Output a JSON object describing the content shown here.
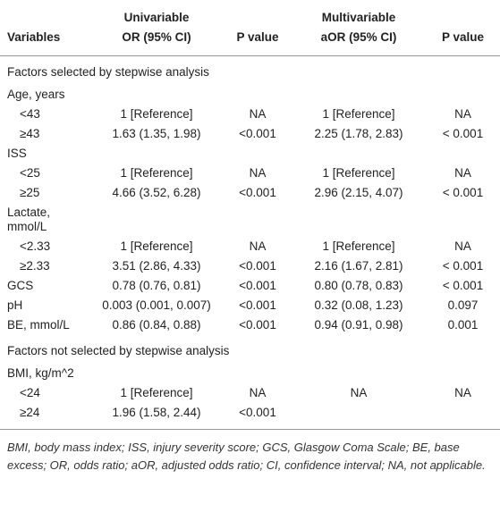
{
  "header": {
    "groups": [
      "Univariable",
      "Multivariable"
    ],
    "columns": [
      "Variables",
      "OR (95% CI)",
      "P value",
      "aOR (95% CI)",
      "P value"
    ]
  },
  "table": {
    "sections": [
      {
        "title": "Factors selected by stepwise analysis",
        "rows": [
          {
            "label": "Age, years",
            "items": [
              {
                "label": "<43",
                "cells": [
                  "1 [Reference]",
                  "NA",
                  "1 [Reference]",
                  "NA"
                ]
              },
              {
                "label": "≥43",
                "cells": [
                  "1.63 (1.35, 1.98)",
                  "<0.001",
                  "2.25 (1.78, 2.83)",
                  "< 0.001"
                ]
              }
            ]
          },
          {
            "label": "ISS",
            "items": [
              {
                "label": "<25",
                "cells": [
                  "1 [Reference]",
                  "NA",
                  "1 [Reference]",
                  "NA"
                ]
              },
              {
                "label": "≥25",
                "cells": [
                  "4.66 (3.52, 6.28)",
                  "<0.001",
                  "2.96 (2.15, 4.07)",
                  "< 0.001"
                ]
              }
            ]
          },
          {
            "label": "Lactate, mmol/L",
            "items": [
              {
                "label": "<2.33",
                "cells": [
                  "1 [Reference]",
                  "NA",
                  "1 [Reference]",
                  "NA"
                ]
              },
              {
                "label": "≥2.33",
                "cells": [
                  "3.51 (2.86, 4.33)",
                  "<0.001",
                  "2.16 (1.67, 2.81)",
                  "< 0.001"
                ]
              }
            ]
          },
          {
            "label": "GCS",
            "cells": [
              "0.78 (0.76, 0.81)",
              "<0.001",
              "0.80 (0.78, 0.83)",
              "< 0.001"
            ]
          },
          {
            "label": "pH",
            "cells": [
              "0.003 (0.001, 0.007)",
              "<0.001",
              "0.32 (0.08, 1.23)",
              "0.097"
            ]
          },
          {
            "label": "BE, mmol/L",
            "cells": [
              "0.86 (0.84, 0.88)",
              "<0.001",
              "0.94 (0.91, 0.98)",
              "0.001"
            ]
          }
        ]
      },
      {
        "title": "Factors not selected by stepwise analysis",
        "rows": [
          {
            "label": "BMI, kg/m^2",
            "items": [
              {
                "label": "<24",
                "cells": [
                  "1 [Reference]",
                  "NA",
                  "NA",
                  "NA"
                ]
              },
              {
                "label": "≥24",
                "cells": [
                  "1.96 (1.58, 2.44)",
                  "<0.001",
                  null,
                  null
                ]
              }
            ]
          }
        ]
      }
    ]
  },
  "footnote": "BMI, body mass index; ISS, injury severity score; GCS, Glasgow Coma Scale; BE, base excess; OR, odds ratio; aOR, adjusted odds ratio; CI, confidence interval; NA, not applicable."
}
